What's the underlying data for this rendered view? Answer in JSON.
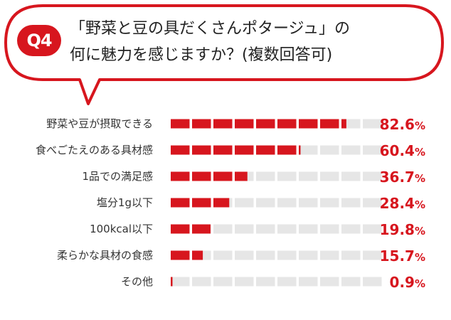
{
  "question": {
    "number": "Q4",
    "line1": "「野菜と豆の具だくさんポタージュ」の",
    "line2": "何に魅力を感じますか？(複数回答可)"
  },
  "colors": {
    "accent": "#d7161e",
    "track": "#e6e6e6"
  },
  "chart_data": {
    "type": "bar",
    "orientation": "horizontal",
    "categories": [
      "野菜や豆が摂取できる",
      "食べごたえのある具材感",
      "1品での満足感",
      "塩分1g以下",
      "100kcal以下",
      "柔らかな具材の食感",
      "その他"
    ],
    "values": [
      82.6,
      60.4,
      36.7,
      28.4,
      19.8,
      15.7,
      0.9
    ],
    "unit": "%",
    "xlim": [
      0,
      100
    ],
    "segments": 10,
    "grid": false,
    "legend": "none"
  }
}
